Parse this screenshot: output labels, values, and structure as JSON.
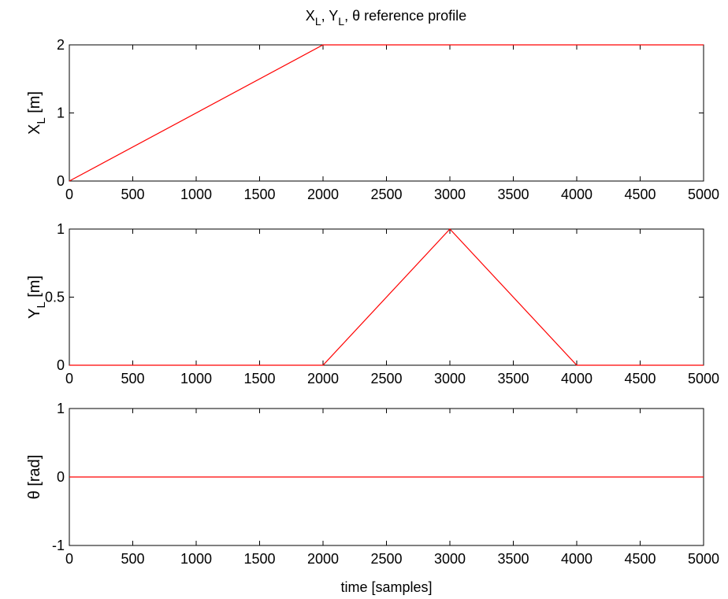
{
  "figure": {
    "title": "X_L, Y_L, θ reference profile",
    "title_parts": [
      "X",
      "L",
      ", Y",
      "L",
      ", θ reference profile"
    ]
  },
  "colors": {
    "line": "#ff0000",
    "axes": "#000000",
    "background": "#ffffff"
  },
  "chart_data": [
    {
      "type": "line",
      "title": "X_L, Y_L, θ reference profile",
      "ylabel": "X_L [m]",
      "ylabel_main": "X",
      "ylabel_sub": "L",
      "ylabel_tail": " [m]",
      "xlabel": "",
      "xlim": [
        0,
        5000
      ],
      "ylim": [
        0,
        2
      ],
      "xticks": [
        0,
        500,
        1000,
        1500,
        2000,
        2500,
        3000,
        3500,
        4000,
        4500,
        5000
      ],
      "yticks": [
        0,
        1,
        2
      ],
      "grid": false,
      "series": [
        {
          "x": [
            0,
            2000,
            5000
          ],
          "y": [
            0,
            2,
            2
          ]
        }
      ]
    },
    {
      "type": "line",
      "ylabel": "Y_L [m]",
      "ylabel_main": "Y",
      "ylabel_sub": "L",
      "ylabel_tail": " [m]",
      "xlabel": "",
      "xlim": [
        0,
        5000
      ],
      "ylim": [
        0,
        1
      ],
      "xticks": [
        0,
        500,
        1000,
        1500,
        2000,
        2500,
        3000,
        3500,
        4000,
        4500,
        5000
      ],
      "yticks": [
        0,
        0.5,
        1
      ],
      "grid": false,
      "series": [
        {
          "x": [
            0,
            2000,
            3000,
            4000,
            5000
          ],
          "y": [
            0,
            0,
            1,
            0,
            0
          ]
        }
      ]
    },
    {
      "type": "line",
      "ylabel": "θ [rad]",
      "xlabel": "time [samples]",
      "xlim": [
        0,
        5000
      ],
      "ylim": [
        -1,
        1
      ],
      "xticks": [
        0,
        500,
        1000,
        1500,
        2000,
        2500,
        3000,
        3500,
        4000,
        4500,
        5000
      ],
      "yticks": [
        -1,
        0,
        1
      ],
      "grid": false,
      "series": [
        {
          "x": [
            0,
            5000
          ],
          "y": [
            0,
            0
          ]
        }
      ]
    }
  ]
}
